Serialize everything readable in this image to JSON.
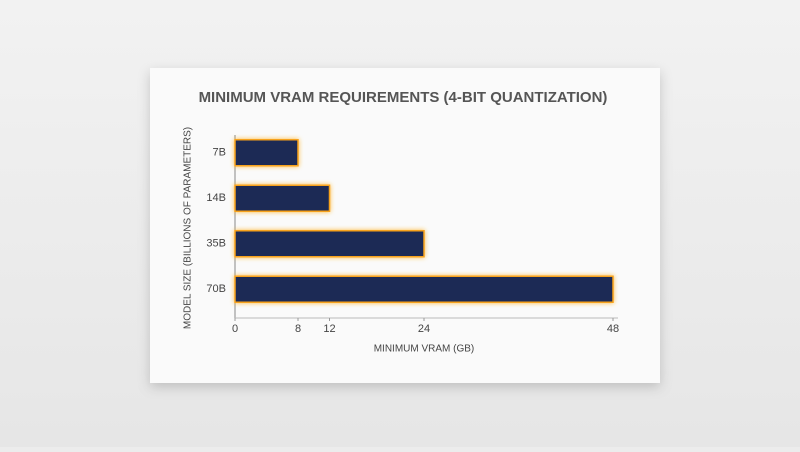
{
  "chart_data": {
    "type": "hbar",
    "title": "MINIMUM VRAM REQUIREMENTS (4-BIT QUANTIZATION)",
    "x_label": "MINIMUM VRAM (GB)",
    "y_label": "MODEL SIZE (BILLIONS OF PARAMETERS)",
    "categories": [
      "7B",
      "14B",
      "35B",
      "70B"
    ],
    "values": [
      8,
      12,
      24,
      48
    ],
    "color": "#1e2b54",
    "edge_color": "#f7a21b",
    "xlim": [
      0,
      48
    ],
    "xticks": [
      0,
      8,
      12,
      24,
      48
    ]
  }
}
